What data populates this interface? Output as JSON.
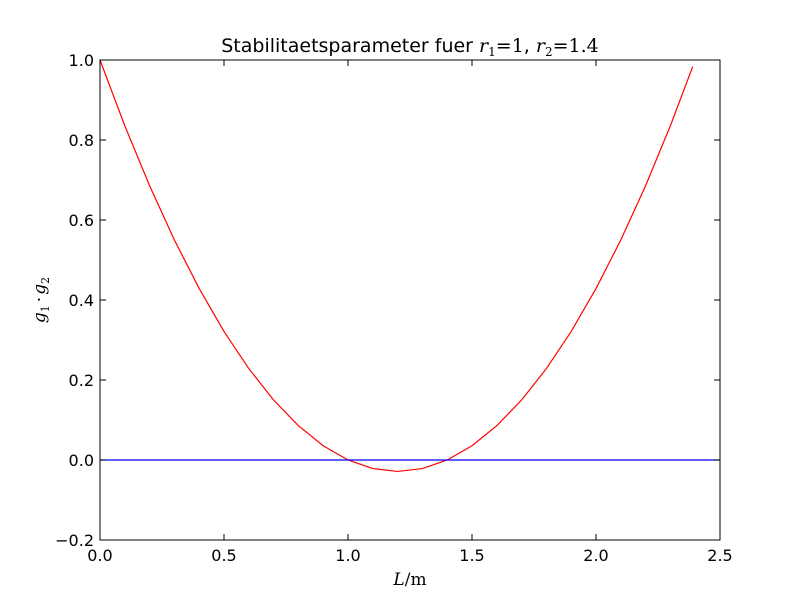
{
  "chart_data": {
    "type": "line",
    "title": {
      "prefix": "Stabilitaetsparameter fuer ",
      "r1_symbol": "r",
      "r1_sub": "1",
      "r1_value": "=1",
      "separator": ", ",
      "r2_symbol": "r",
      "r2_sub": "2",
      "r2_value": "=1.4"
    },
    "xlabel": {
      "var": "L",
      "unit": "/m"
    },
    "ylabel": {
      "g1": "g",
      "g1_sub": "1",
      "dot": "·",
      "g2": "g",
      "g2_sub": "2"
    },
    "xlim": [
      0.0,
      2.5
    ],
    "ylim": [
      -0.2,
      1.0
    ],
    "x_ticks": [
      0.0,
      0.5,
      1.0,
      1.5,
      2.0,
      2.5
    ],
    "x_tick_labels": [
      "0.0",
      "0.5",
      "1.0",
      "1.5",
      "2.0",
      "2.5"
    ],
    "y_ticks": [
      -0.2,
      0.0,
      0.2,
      0.4,
      0.6,
      0.8,
      1.0
    ],
    "y_tick_labels": [
      "−0.2",
      "0.0",
      "0.2",
      "0.4",
      "0.6",
      "0.8",
      "1.0"
    ],
    "grid": false,
    "legend": "none",
    "series": [
      {
        "color": "#ff0000",
        "x": [
          0.0,
          0.1,
          0.2,
          0.3,
          0.4,
          0.5,
          0.6,
          0.7,
          0.8,
          0.9,
          1.0,
          1.1,
          1.2,
          1.3,
          1.4,
          1.5,
          1.6,
          1.7,
          1.8,
          1.9,
          2.0,
          2.1,
          2.2,
          2.3,
          2.39
        ],
        "y": [
          1.0,
          0.8357,
          0.6857,
          0.55,
          0.4286,
          0.3214,
          0.2286,
          0.15,
          0.0857,
          0.0357,
          0.0,
          -0.0214,
          -0.0286,
          -0.0214,
          0.0,
          0.0357,
          0.0857,
          0.15,
          0.2286,
          0.3214,
          0.4286,
          0.55,
          0.6857,
          0.8357,
          0.9836
        ]
      },
      {
        "color": "#0000ff",
        "x": [
          0.0,
          2.5
        ],
        "y": [
          0.0,
          0.0
        ]
      }
    ]
  }
}
